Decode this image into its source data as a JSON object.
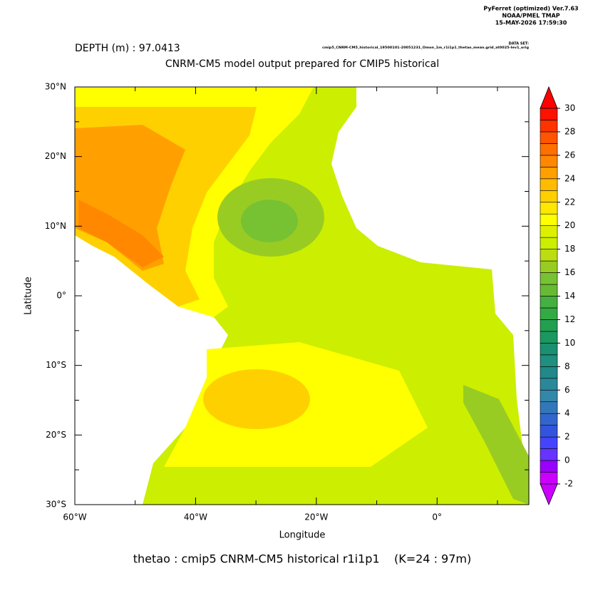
{
  "chart_data": {
    "type": "map",
    "header": [
      "PyFerret (optimized) Ver.7.63",
      "NOAA/PMEL TMAP",
      "15-MAY-2026 17:59:30"
    ],
    "dataset_label": "DATA SET:",
    "dataset": "cmip5_CNRM-CM5_historical_19500101-20051231_Omon_1m_r1i1p1_thetao_mean.grid_at0025-lev1_orig",
    "subtitle": "DEPTH (m) : 97.0413",
    "title": "CNRM-CM5 model output prepared for CMIP5 historical",
    "footer": "thetao : cmip5 CNRM-CM5 historical r1i1p1    (K=24 : 97m)",
    "xlabel": "Longitude",
    "ylabel": "Latitude",
    "xlim": [
      -60,
      15.2
    ],
    "ylim": [
      -30,
      30
    ],
    "xticks": [
      {
        "value": -60,
        "label": "60°W"
      },
      {
        "value": -40,
        "label": "40°W"
      },
      {
        "value": -20,
        "label": "20°W"
      },
      {
        "value": 0,
        "label": "0°"
      }
    ],
    "xminorticks": [
      -50,
      -30,
      -10,
      10
    ],
    "yticks": [
      {
        "value": 30,
        "label": "30°N"
      },
      {
        "value": 20,
        "label": "20°N"
      },
      {
        "value": 10,
        "label": "10°N"
      },
      {
        "value": 0,
        "label": "0°"
      },
      {
        "value": -10,
        "label": "10°S"
      },
      {
        "value": -20,
        "label": "20°S"
      },
      {
        "value": -30,
        "label": "30°S"
      }
    ],
    "yminorticks": [
      25,
      15,
      5,
      -5,
      -15,
      -25
    ],
    "colorbar": {
      "levels": [
        -2,
        -1,
        0,
        1,
        2,
        3,
        4,
        5,
        6,
        7,
        8,
        9,
        10,
        11,
        12,
        13,
        14,
        15,
        16,
        17,
        18,
        19,
        20,
        21,
        22,
        23,
        24,
        25,
        26,
        27,
        28,
        29,
        30
      ],
      "colors": [
        "#cc00ff",
        "#9900ff",
        "#6633ff",
        "#4444ff",
        "#3355dd",
        "#3366cc",
        "#3377bb",
        "#3388aa",
        "#2a8899",
        "#228888",
        "#1f8f80",
        "#1a9070",
        "#199960",
        "#22a050",
        "#33aa44",
        "#44b040",
        "#66bb33",
        "#77c233",
        "#99cc22",
        "#bbdd11",
        "#ccee00",
        "#ddf000",
        "#ffff00",
        "#ffe800",
        "#ffd000",
        "#ffbb00",
        "#ffa000",
        "#ff8800",
        "#ff7000",
        "#ff5500",
        "#ff3300",
        "#ff1100"
      ],
      "under_color": "#cc00ff",
      "over_color": "#ff0000",
      "ticks": [
        30,
        28,
        26,
        24,
        22,
        20,
        18,
        16,
        14,
        12,
        10,
        8,
        6,
        4,
        2,
        0,
        -2
      ]
    }
  }
}
